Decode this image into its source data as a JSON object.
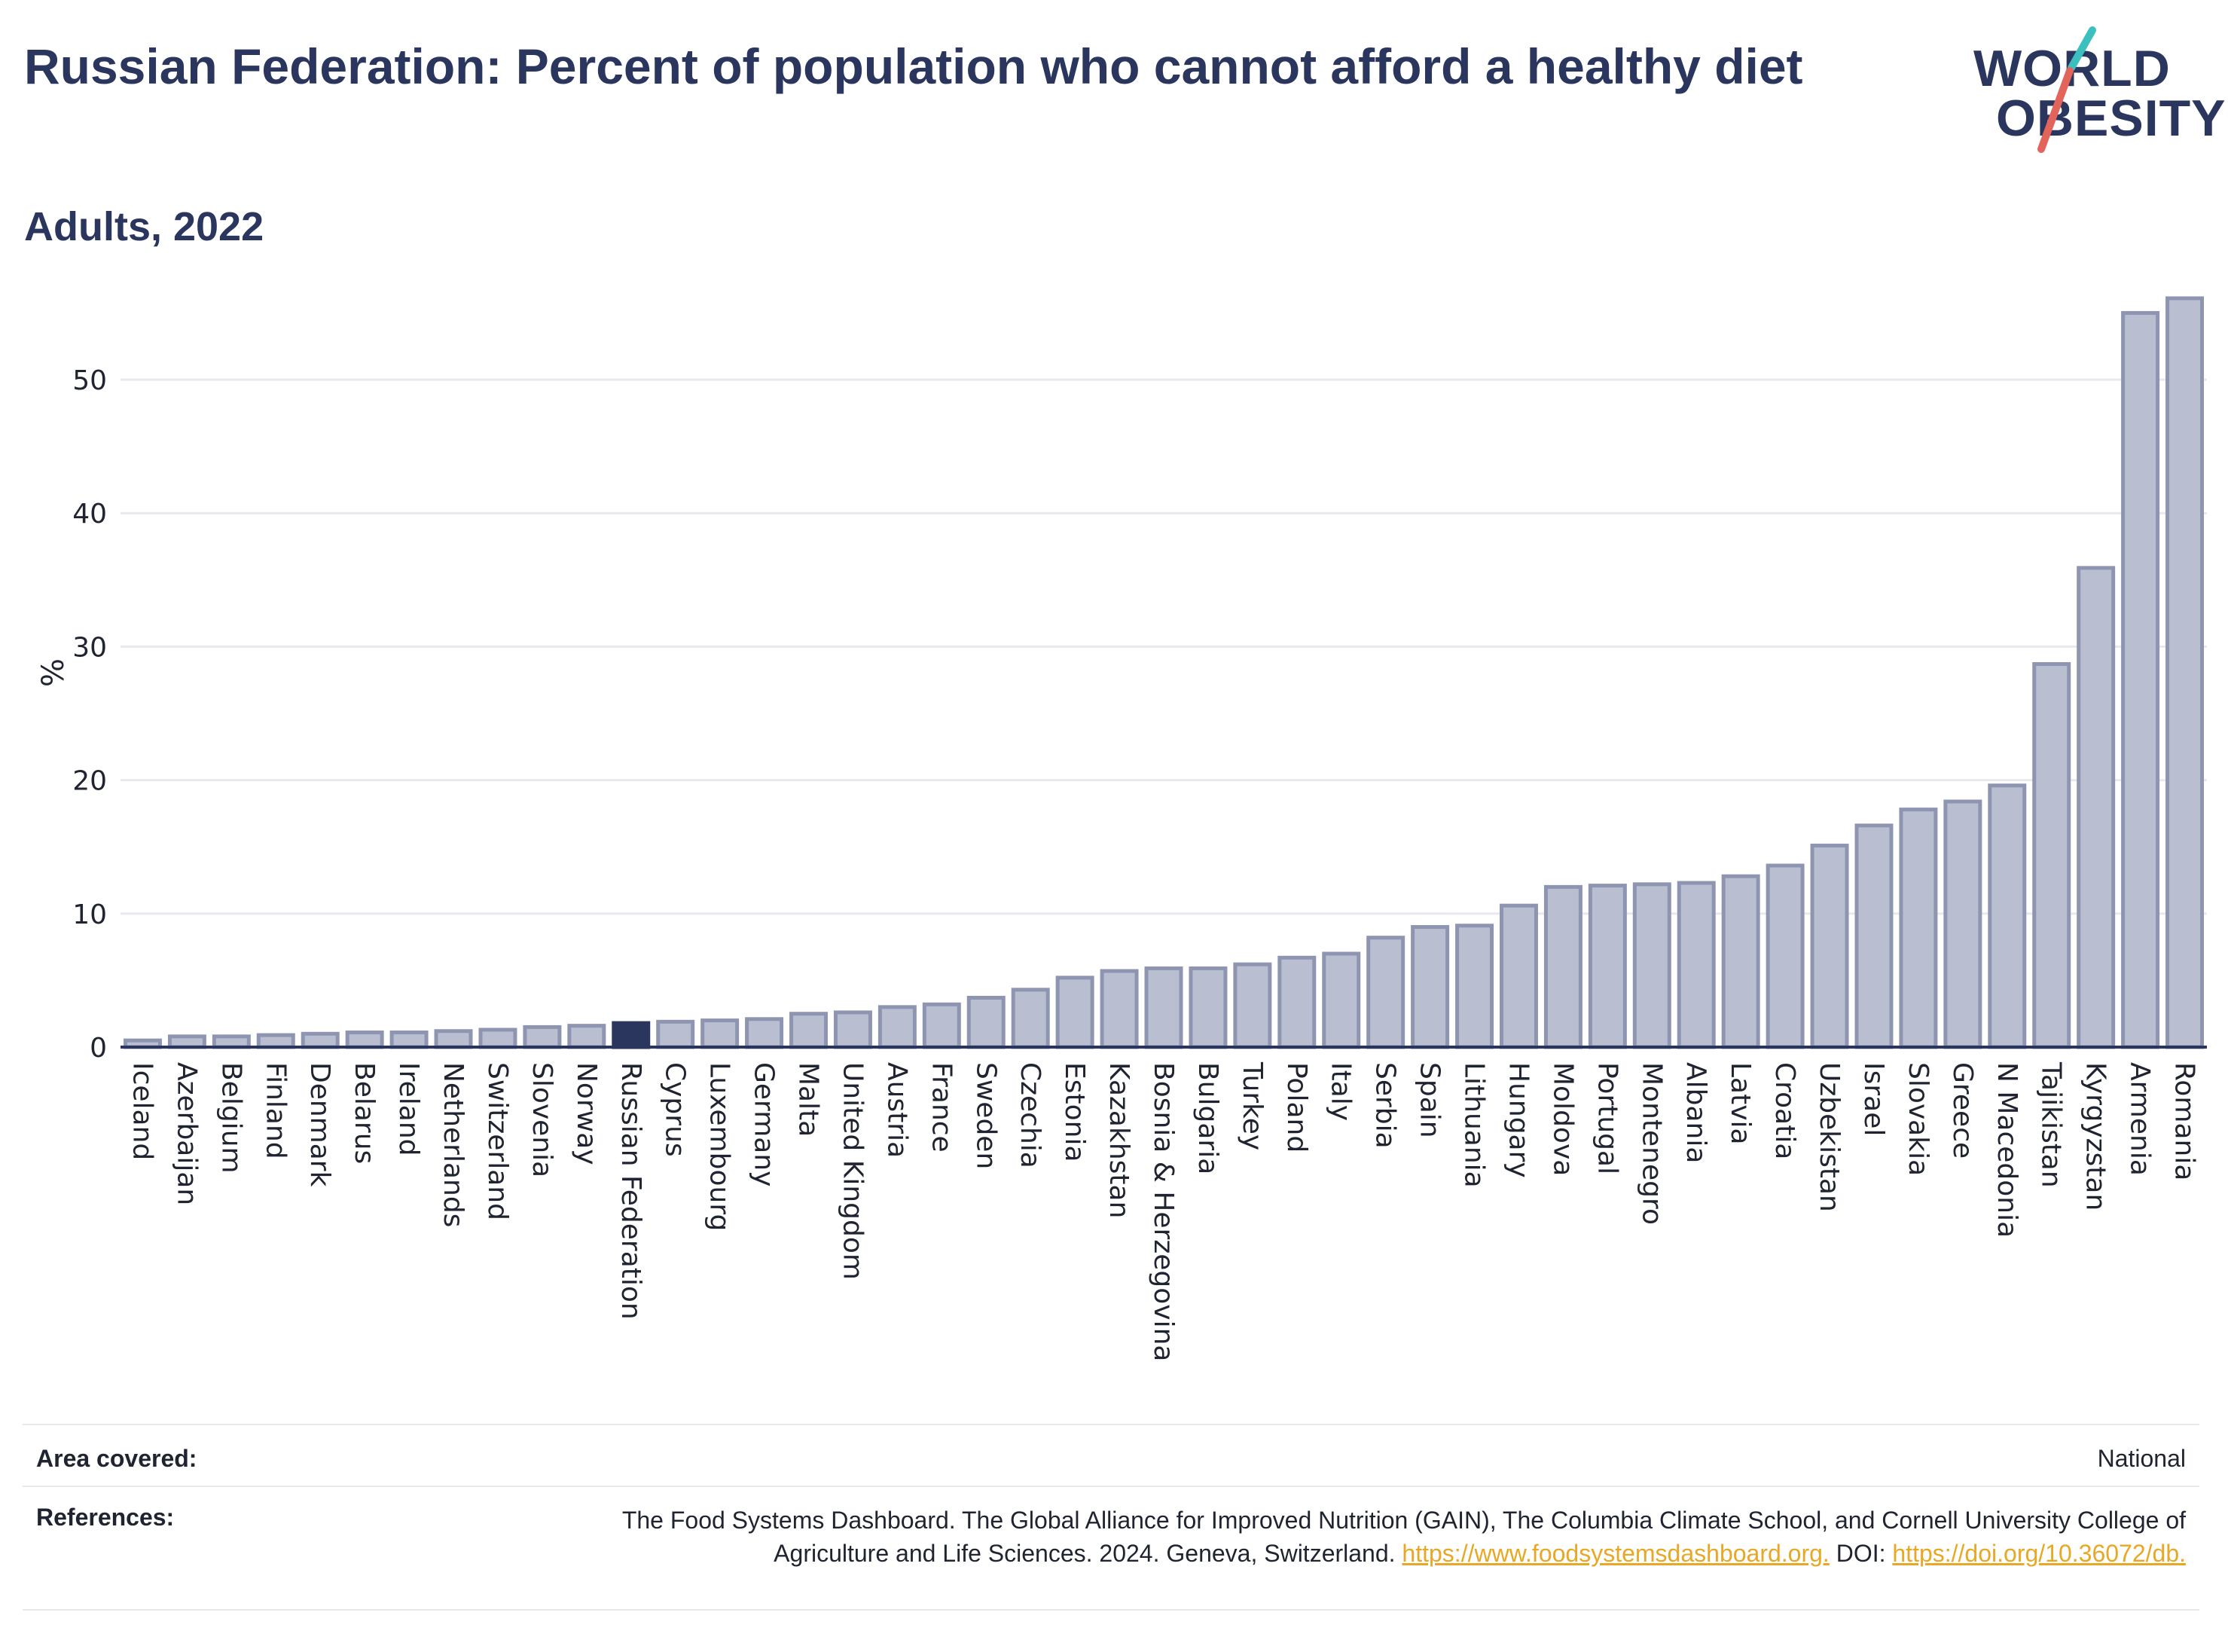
{
  "header": {
    "title": "Russian Federation: Percent of population who cannot afford a healthy diet",
    "subtitle": "Adults, 2022"
  },
  "logo": {
    "line1": "WORLD",
    "line2": "OBESITY",
    "stroke_colors": [
      "#3bbfbf",
      "#e2645a"
    ],
    "text_color": "#2b365e"
  },
  "colors": {
    "bar_fill": "#b9bfd0",
    "bar_stroke": "#8e95b0",
    "highlight": "#2b365e",
    "grid": "#e8e8ee",
    "axis": "#2b365e"
  },
  "chart_data": {
    "type": "bar",
    "title": "",
    "xlabel": "",
    "ylabel": "%",
    "ylim": [
      0,
      57
    ],
    "yticks": [
      0,
      10,
      20,
      30,
      40,
      50
    ],
    "grid": true,
    "highlight_category": "Russian Federation",
    "categories": [
      "Iceland",
      "Azerbaijan",
      "Belgium",
      "Finland",
      "Denmark",
      "Belarus",
      "Ireland",
      "Netherlands",
      "Switzerland",
      "Slovenia",
      "Norway",
      "Russian Federation",
      "Cyprus",
      "Luxembourg",
      "Germany",
      "Malta",
      "United Kingdom",
      "Austria",
      "France",
      "Sweden",
      "Czechia",
      "Estonia",
      "Kazakhstan",
      "Bosnia & Herzegovina",
      "Bulgaria",
      "Turkey",
      "Poland",
      "Italy",
      "Serbia",
      "Spain",
      "Lithuania",
      "Hungary",
      "Moldova",
      "Portugal",
      "Montenegro",
      "Albania",
      "Latvia",
      "Croatia",
      "Uzbekistan",
      "Israel",
      "Slovakia",
      "Greece",
      "N Macedonia",
      "Tajikistan",
      "Kyrgyzstan",
      "Armenia",
      "Romania"
    ],
    "values": [
      0.5,
      0.8,
      0.8,
      0.9,
      1.0,
      1.1,
      1.1,
      1.2,
      1.3,
      1.5,
      1.6,
      1.8,
      1.9,
      2.0,
      2.1,
      2.5,
      2.6,
      3.0,
      3.2,
      3.7,
      4.3,
      5.2,
      5.7,
      5.9,
      5.9,
      6.2,
      6.7,
      7.0,
      8.2,
      9.0,
      9.1,
      10.6,
      12.0,
      12.1,
      12.2,
      12.3,
      12.8,
      13.6,
      15.1,
      16.6,
      17.8,
      18.4,
      19.6,
      28.7,
      35.9,
      55.0,
      56.1
    ]
  },
  "footer": {
    "area_label": "Area covered:",
    "area_value": "National",
    "references_label": "References:",
    "references_text": "The Food Systems Dashboard. The Global Alliance for Improved Nutrition (GAIN), The Columbia Climate School, and Cornell University College of Agriculture and Life Sciences. 2024. Geneva, Switzerland.",
    "references_link1": "https://www.foodsystemsdashboard.org.",
    "references_doi_label": "DOI:",
    "references_link2": "https://doi.org/10.36072/db."
  }
}
